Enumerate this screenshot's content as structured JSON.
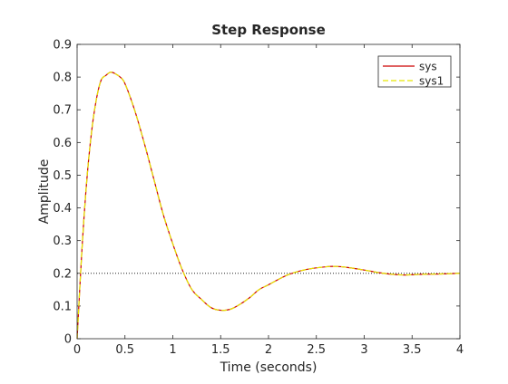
{
  "chart_data": {
    "type": "line",
    "title": "Step Response",
    "xlabel": "Time (seconds)",
    "ylabel": "Amplitude",
    "xlim": [
      0,
      4
    ],
    "ylim": [
      0,
      0.9
    ],
    "xticks": [
      0,
      0.5,
      1,
      1.5,
      2,
      2.5,
      3,
      3.5,
      4
    ],
    "xtick_labels": [
      "0",
      "0.5",
      "1",
      "1.5",
      "2",
      "2.5",
      "3",
      "3.5",
      "4"
    ],
    "yticks": [
      0,
      0.1,
      0.2,
      0.3,
      0.4,
      0.5,
      0.6,
      0.7,
      0.8,
      0.9
    ],
    "ytick_labels": [
      "0",
      "0.1",
      "0.2",
      "0.3",
      "0.4",
      "0.5",
      "0.6",
      "0.7",
      "0.8",
      "0.9"
    ],
    "grid": false,
    "legend_position": "top-right",
    "steady_state": {
      "y": 0.2,
      "style": "dotted",
      "color": "#000000"
    },
    "series": [
      {
        "name": "sys",
        "color": "#cc0000",
        "style": "solid",
        "x": [
          0,
          0.05,
          0.1,
          0.15,
          0.2,
          0.25,
          0.3,
          0.35,
          0.4,
          0.45,
          0.5,
          0.6,
          0.7,
          0.8,
          0.9,
          1.0,
          1.1,
          1.2,
          1.3,
          1.4,
          1.5,
          1.6,
          1.7,
          1.8,
          1.9,
          2.0,
          2.2,
          2.4,
          2.6,
          2.7,
          2.8,
          3.0,
          3.2,
          3.4,
          3.6,
          3.8,
          4.0
        ],
        "y": [
          0.0,
          0.27,
          0.48,
          0.63,
          0.73,
          0.79,
          0.805,
          0.815,
          0.81,
          0.8,
          0.78,
          0.7,
          0.6,
          0.49,
          0.38,
          0.29,
          0.21,
          0.15,
          0.12,
          0.095,
          0.087,
          0.09,
          0.105,
          0.125,
          0.15,
          0.165,
          0.195,
          0.212,
          0.22,
          0.221,
          0.219,
          0.21,
          0.2,
          0.195,
          0.197,
          0.198,
          0.2
        ]
      },
      {
        "name": "sys1",
        "color": "#e6e600",
        "style": "dashed",
        "x": [
          0,
          0.05,
          0.1,
          0.15,
          0.2,
          0.25,
          0.3,
          0.35,
          0.4,
          0.45,
          0.5,
          0.6,
          0.7,
          0.8,
          0.9,
          1.0,
          1.1,
          1.2,
          1.3,
          1.4,
          1.5,
          1.6,
          1.7,
          1.8,
          1.9,
          2.0,
          2.2,
          2.4,
          2.6,
          2.7,
          2.8,
          3.0,
          3.2,
          3.4,
          3.6,
          3.8,
          4.0
        ],
        "y": [
          0.0,
          0.27,
          0.48,
          0.63,
          0.73,
          0.79,
          0.805,
          0.815,
          0.81,
          0.8,
          0.78,
          0.7,
          0.6,
          0.49,
          0.38,
          0.29,
          0.21,
          0.15,
          0.12,
          0.095,
          0.087,
          0.09,
          0.105,
          0.125,
          0.15,
          0.165,
          0.195,
          0.212,
          0.22,
          0.221,
          0.219,
          0.21,
          0.2,
          0.195,
          0.197,
          0.198,
          0.2
        ]
      }
    ]
  }
}
